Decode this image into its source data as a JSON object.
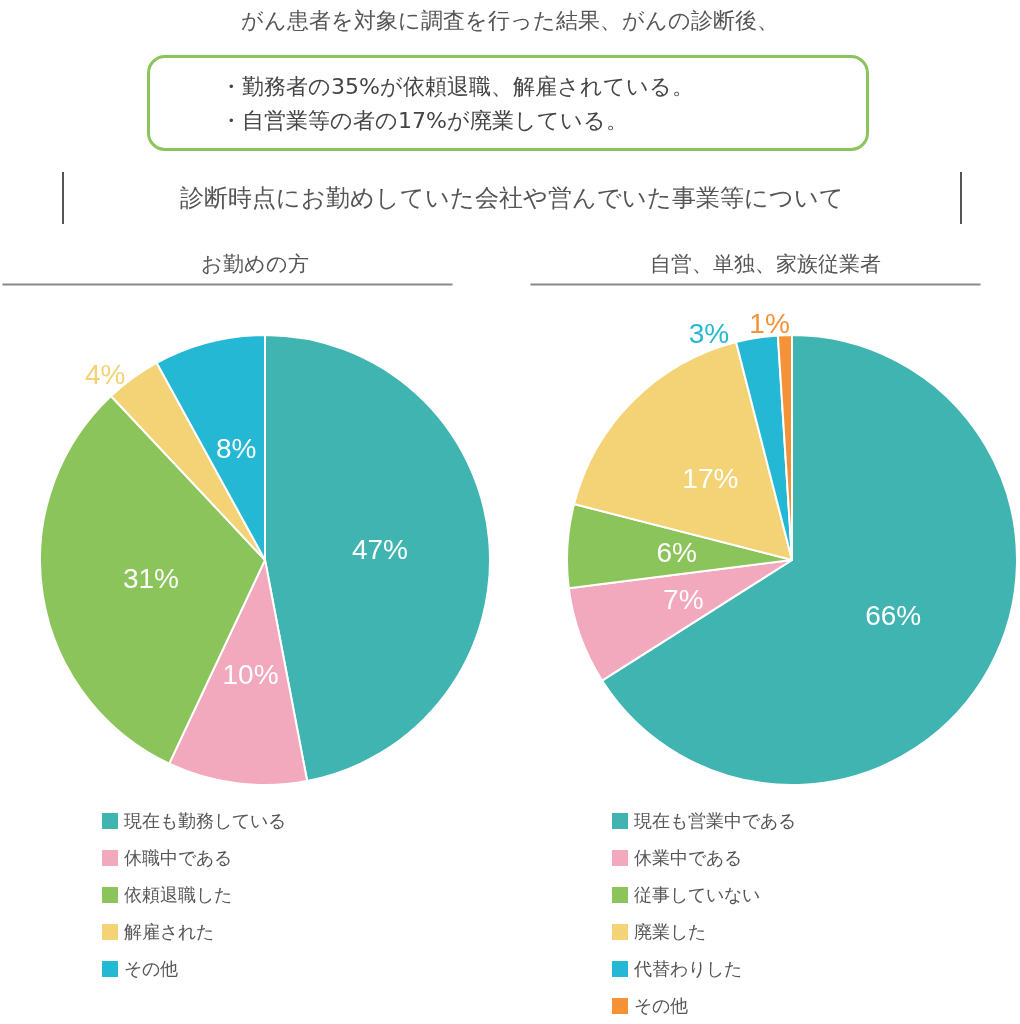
{
  "chart_data": [
    {
      "type": "other",
      "title": "がん患者を対象に調査を行った結果、がんの診断後、",
      "annotations": [
        "・勤務者の35%が依頼退職、解雇されている。",
        "・自営業等の者の17%が廃業している。",
        "診断時点にお勤めしていた会社や営んでいた事業等について"
      ]
    },
    {
      "type": "pie",
      "title": "お勤めの方",
      "categories": [
        "現在も勤務している",
        "休職中である",
        "依頼退職した",
        "解雇された",
        "その他"
      ],
      "values": [
        47,
        10,
        31,
        4,
        8
      ],
      "colors": [
        "#40b4b0",
        "#f2a8bd",
        "#8bc45a",
        "#f3d375",
        "#24b8d4"
      ],
      "value_labels": [
        "47%",
        "10%",
        "31%",
        "4%",
        "8%"
      ],
      "legend": "bottom"
    },
    {
      "type": "pie",
      "title": "自営、単独、家族従業者",
      "categories": [
        "現在も営業中である",
        "休業中である",
        "従事していない",
        "廃業した",
        "代替わりした",
        "その他"
      ],
      "values": [
        66,
        7,
        6,
        17,
        3,
        1
      ],
      "colors": [
        "#40b4b0",
        "#f2a8bd",
        "#8bc45a",
        "#f3d375",
        "#24b8d4",
        "#f39237"
      ],
      "value_labels": [
        "66%",
        "7%",
        "6%",
        "17%",
        "3%",
        "1%"
      ],
      "legend": "bottom"
    }
  ]
}
